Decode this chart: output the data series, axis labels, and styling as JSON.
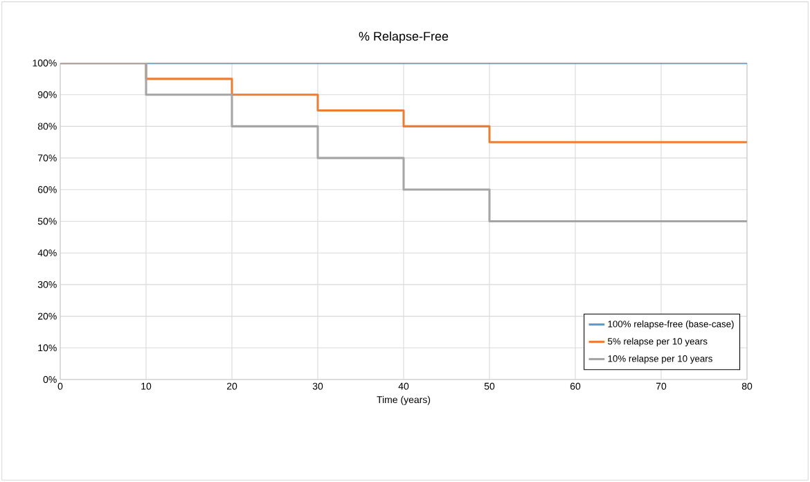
{
  "chart_data": {
    "type": "step",
    "title": "% Relapse-Free",
    "xlabel": "Time (years)",
    "x": [
      0,
      10,
      20,
      30,
      40,
      50,
      80
    ],
    "series": [
      {
        "name": "100% relapse-free (base-case)",
        "color": "#5b9bd5",
        "values": [
          100,
          100,
          100,
          100,
          100,
          100,
          100
        ]
      },
      {
        "name": "5% relapse per 10 years",
        "color": "#ed7d31",
        "values": [
          100,
          95,
          90,
          85,
          80,
          75,
          75
        ]
      },
      {
        "name": "10% relapse per 10 years",
        "color": "#a5a5a5",
        "values": [
          100,
          90,
          80,
          70,
          60,
          50,
          50
        ]
      }
    ],
    "xlim": [
      0,
      80
    ],
    "xticks": [
      0,
      10,
      20,
      30,
      40,
      50,
      60,
      70,
      80
    ],
    "ylim": [
      0,
      100
    ],
    "yticks": [
      {
        "value": 0,
        "label": "0%"
      },
      {
        "value": 10,
        "label": "10%"
      },
      {
        "value": 20,
        "label": "20%"
      },
      {
        "value": 30,
        "label": "30%"
      },
      {
        "value": 40,
        "label": "40%"
      },
      {
        "value": 50,
        "label": "50%"
      },
      {
        "value": 60,
        "label": "60%"
      },
      {
        "value": 70,
        "label": "70%"
      },
      {
        "value": 80,
        "label": "80%"
      },
      {
        "value": 90,
        "label": "90%"
      },
      {
        "value": 100,
        "label": "100%"
      }
    ],
    "grid": true,
    "legend": "bottom right",
    "line_style": "solid",
    "marker": "none"
  }
}
